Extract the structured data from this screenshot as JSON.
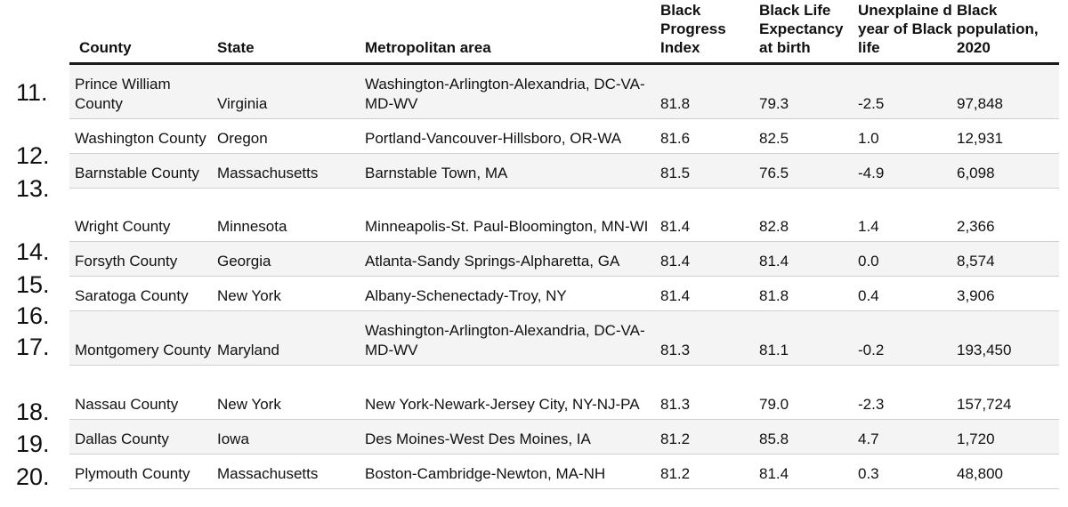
{
  "headers": {
    "county": "County",
    "state": "State",
    "metro": "Metropolitan area",
    "bpi": "Black Progress Index",
    "life": "Black Life Expectancy at birth",
    "unexplained": "Unexplaine d year of Black life",
    "population": "Black population, 2020"
  },
  "ranks": [
    "11.",
    "12.",
    "13.",
    "14.",
    "15.",
    "16.",
    "17.",
    "18.",
    "19.",
    "20."
  ],
  "rows": [
    {
      "county": "Prince William County",
      "state": "Virginia",
      "metro": "Washington-Arlington-Alexandria, DC-VA-MD-WV",
      "bpi": "81.8",
      "life": "79.3",
      "unexplained": "-2.5",
      "population": "97,848"
    },
    {
      "county": "Washington County",
      "state": "Oregon",
      "metro": "Portland-Vancouver-Hillsboro, OR-WA",
      "bpi": "81.6",
      "life": "82.5",
      "unexplained": "1.0",
      "population": "12,931"
    },
    {
      "county": "Barnstable County",
      "state": "Massachusetts",
      "metro": "Barnstable Town, MA",
      "bpi": "81.5",
      "life": "76.5",
      "unexplained": "-4.9",
      "population": "6,098"
    },
    {
      "county": "Wright County",
      "state": "Minnesota",
      "metro": "Minneapolis-St. Paul-Bloomington, MN-WI",
      "bpi": "81.4",
      "life": "82.8",
      "unexplained": "1.4",
      "population": "2,366"
    },
    {
      "county": "Forsyth County",
      "state": "Georgia",
      "metro": "Atlanta-Sandy Springs-Alpharetta, GA",
      "bpi": "81.4",
      "life": "81.4",
      "unexplained": "0.0",
      "population": "8,574"
    },
    {
      "county": "Saratoga County",
      "state": "New York",
      "metro": "Albany-Schenectady-Troy, NY",
      "bpi": "81.4",
      "life": "81.8",
      "unexplained": "0.4",
      "population": "3,906"
    },
    {
      "county": "Montgomery County",
      "state": "Maryland",
      "metro": "Washington-Arlington-Alexandria, DC-VA-MD-WV",
      "bpi": "81.3",
      "life": "81.1",
      "unexplained": "-0.2",
      "population": "193,450"
    },
    {
      "county": "Nassau County",
      "state": "New York",
      "metro": "New York-Newark-Jersey City, NY-NJ-PA",
      "bpi": "81.3",
      "life": "79.0",
      "unexplained": "-2.3",
      "population": "157,724"
    },
    {
      "county": "Dallas County",
      "state": "Iowa",
      "metro": "Des Moines-West Des Moines, IA",
      "bpi": "81.2",
      "life": "85.8",
      "unexplained": "4.7",
      "population": "1,720"
    },
    {
      "county": "Plymouth County",
      "state": "Massachusetts",
      "metro": "Boston-Cambridge-Newton, MA-NH",
      "bpi": "81.2",
      "life": "81.4",
      "unexplained": "0.3",
      "population": "48,800"
    }
  ]
}
